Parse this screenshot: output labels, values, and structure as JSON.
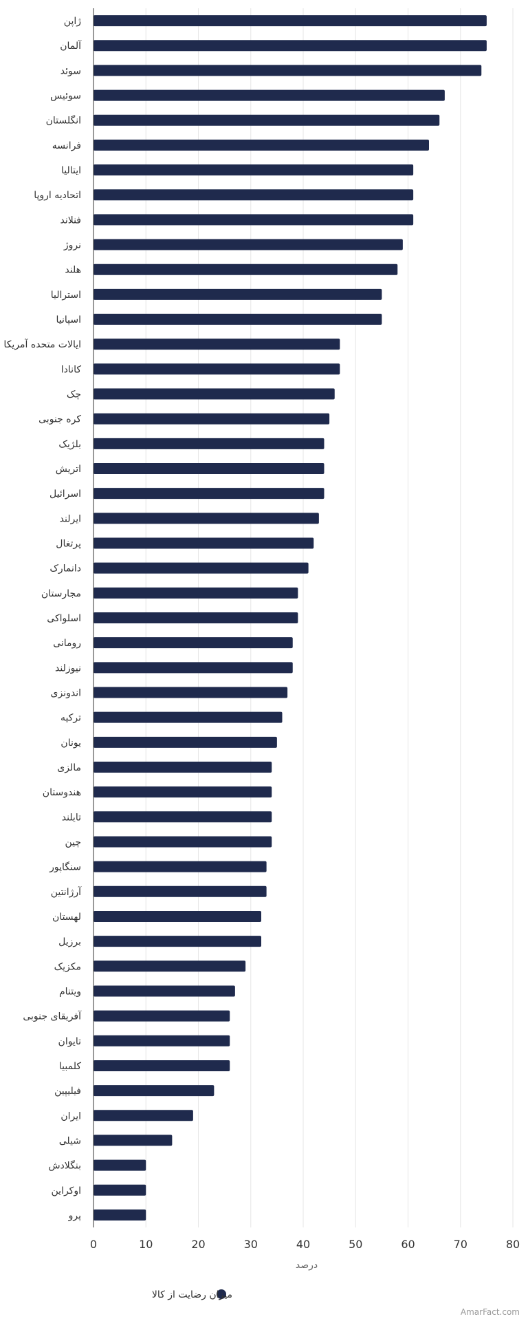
{
  "chart_data": {
    "type": "bar",
    "orientation": "horizontal",
    "categories": [
      "ژاپن",
      "آلمان",
      "سوئد",
      "سوئیس",
      "انگلستان",
      "فرانسه",
      "ایتالیا",
      "اتحادیه اروپا",
      "فنلاند",
      "نروژ",
      "هلند",
      "استرالیا",
      "اسپانیا",
      "ایالات متحده آمریکا",
      "کانادا",
      "چک",
      "کره جنوبی",
      "بلژیک",
      "اتریش",
      "اسرائیل",
      "ایرلند",
      "پرتغال",
      "دانمارک",
      "مجارستان",
      "اسلواکی",
      "رومانی",
      "نیوزلند",
      "اندونزی",
      "ترکیه",
      "یونان",
      "مالزی",
      "هندوستان",
      "تایلند",
      "چین",
      "سنگاپور",
      "آرژانتین",
      "لهستان",
      "برزیل",
      "مکزیک",
      "ویتنام",
      "آفریقای جنوبی",
      "تایوان",
      "کلمبیا",
      "فیلیپین",
      "ایران",
      "شیلی",
      "بنگلادش",
      "اوکراین",
      "پرو"
    ],
    "series": [
      {
        "name": "میزان رضایت از کالا",
        "color": "#1f2a4d",
        "values": [
          75,
          75,
          74,
          67,
          66,
          64,
          61,
          61,
          61,
          59,
          58,
          55,
          55,
          47,
          47,
          46,
          45,
          44,
          44,
          44,
          43,
          42,
          41,
          39,
          39,
          38,
          38,
          37,
          36,
          35,
          34,
          34,
          34,
          34,
          33,
          33,
          32,
          32,
          29,
          27,
          26,
          26,
          26,
          23,
          19,
          15,
          10,
          10,
          10
        ]
      }
    ],
    "xlim": [
      0,
      80
    ],
    "xticks": [
      0,
      10,
      20,
      30,
      40,
      50,
      60,
      70,
      80
    ],
    "xlabel": "درصد",
    "grid": true,
    "legend_position": "bottom-center"
  },
  "credit": "AmarFact.com"
}
